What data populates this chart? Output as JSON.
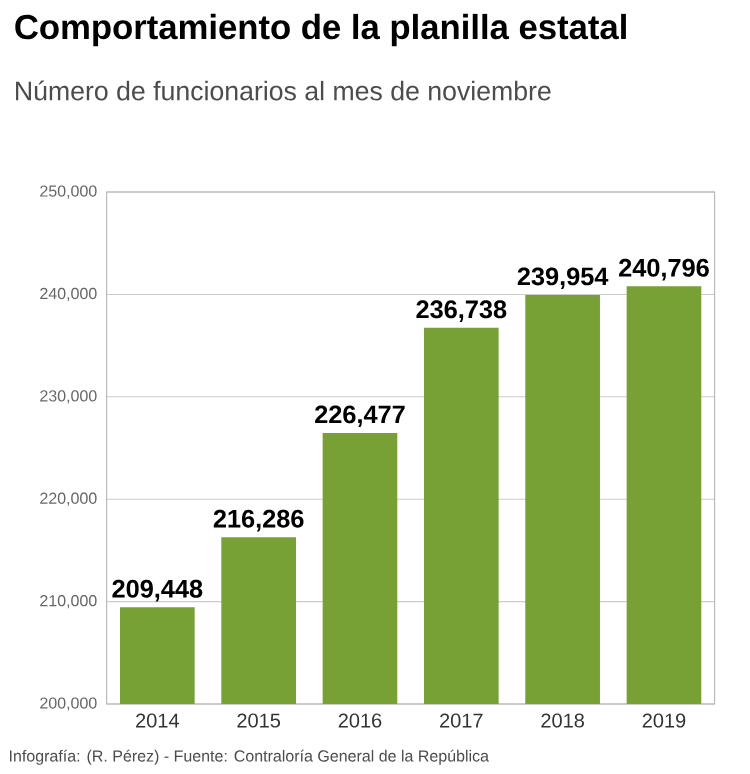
{
  "chart_data": {
    "type": "bar",
    "title": "Comportamiento de la planilla estatal",
    "subtitle": "Número de funcionarios al mes de noviembre",
    "categories": [
      "2014",
      "2015",
      "2016",
      "2017",
      "2018",
      "2019"
    ],
    "values": [
      209448,
      216286,
      226477,
      236738,
      239954,
      240796
    ],
    "value_labels": [
      "209,448",
      "216,286",
      "226,477",
      "236,738",
      "239,954",
      "240,796"
    ],
    "color": "#77a035",
    "ylim": [
      200000,
      250000
    ],
    "yticks": [
      {
        "value": 200000,
        "label": "200,000"
      },
      {
        "value": 210000,
        "label": "210,000"
      },
      {
        "value": 220000,
        "label": "220,000"
      },
      {
        "value": 230000,
        "label": "230,000"
      },
      {
        "value": 240000,
        "label": "240,000"
      },
      {
        "value": 250000,
        "label": "250,000"
      }
    ],
    "grid": true,
    "annotations": [
      "Infografía: (R. Pérez) - Fuente: Contraloría General de la República"
    ]
  }
}
